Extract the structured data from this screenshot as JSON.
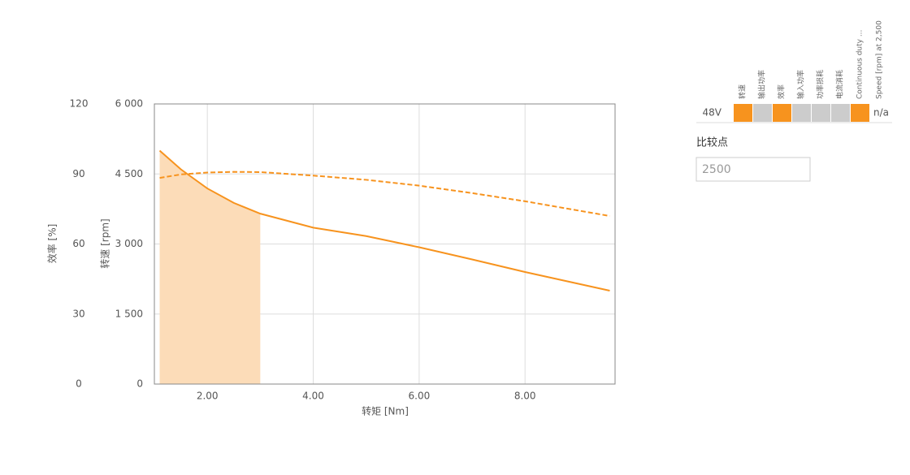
{
  "chart_data": {
    "type": "line",
    "xlabel": "转矩 [Nm]",
    "ylabel": "效率 [%]",
    "y2label": "转速 [rpm]",
    "xlim": [
      1,
      9.7
    ],
    "xticks": [
      {
        "value": 2,
        "label": "2.00"
      },
      {
        "value": 4,
        "label": "4.00"
      },
      {
        "value": 6,
        "label": "6.00"
      },
      {
        "value": 8,
        "label": "8.00"
      }
    ],
    "ylim": [
      0,
      120
    ],
    "yticks": [
      0,
      30,
      60,
      90,
      120
    ],
    "y2lim": [
      0,
      6000
    ],
    "y2ticks": [
      {
        "value": 0,
        "label": "0"
      },
      {
        "value": 1500,
        "label": "1 500"
      },
      {
        "value": 3000,
        "label": "3 000"
      },
      {
        "value": 4500,
        "label": "4 500"
      },
      {
        "value": 6000,
        "label": "6 000"
      }
    ],
    "grid": true,
    "series": [
      {
        "type": "area",
        "color": "#fcdcb8",
        "axis": "y2",
        "x": [
          1.1,
          1.5,
          2.0,
          2.5,
          3.0
        ],
        "values": [
          5000,
          4600,
          4190,
          3880,
          3650
        ]
      },
      {
        "type": "line",
        "color": "#f7931e",
        "axis": "y2",
        "x": [
          1.1,
          1.5,
          2.0,
          2.5,
          3.0,
          4.0,
          5.0,
          6.0,
          7.0,
          8.0,
          9.6
        ],
        "values": [
          5000,
          4600,
          4190,
          3880,
          3650,
          3350,
          3170,
          2930,
          2670,
          2400,
          2000
        ]
      },
      {
        "type": "line",
        "dashed": true,
        "color": "#f7931e",
        "axis": "y",
        "x": [
          1.1,
          1.5,
          2.0,
          2.5,
          3.0,
          4.0,
          5.0,
          6.0,
          7.0,
          8.0,
          9.6
        ],
        "values": [
          88.3,
          89.8,
          90.6,
          90.9,
          90.8,
          89.3,
          87.5,
          85,
          81.8,
          78.3,
          72
        ]
      }
    ],
    "legend": {
      "row_label": "48V",
      "status": "n/a",
      "items": [
        {
          "label": "转速",
          "color": "#f7931e"
        },
        {
          "label": "输出功率",
          "color": "#cccccc"
        },
        {
          "label": "效率",
          "color": "#f7931e"
        },
        {
          "label": "输入功率",
          "color": "#cccccc"
        },
        {
          "label": "功率损耗",
          "color": "#cccccc"
        },
        {
          "label": "电流消耗",
          "color": "#cccccc"
        },
        {
          "label": "Continuous duty ...",
          "color": "#f7931e"
        },
        {
          "label": "Speed [rpm] at 2,500"
        }
      ]
    },
    "compare_label": "比较点",
    "compare_value": "2500"
  }
}
